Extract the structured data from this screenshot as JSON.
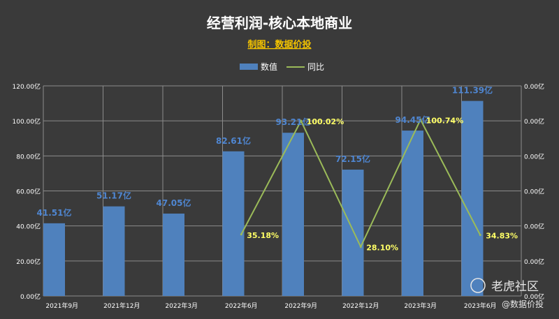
{
  "chart_data": {
    "type": "bar",
    "title": "经营利润-核心本地商业",
    "subtitle": "制图：数据价投",
    "categories": [
      "2021年9月",
      "2021年12月",
      "2022年3月",
      "2022年6月",
      "2022年9月",
      "2022年12月",
      "2023年3月",
      "2023年6月"
    ],
    "series": [
      {
        "name": "数值",
        "type": "bar",
        "axis": "left",
        "values": [
          41.51,
          51.17,
          47.05,
          82.61,
          93.21,
          72.15,
          94.45,
          111.39
        ],
        "labels": [
          "41.51亿",
          "51.17亿",
          "47.05亿",
          "82.61亿",
          "93.21亿",
          "72.15亿",
          "94.45亿",
          "111.39亿"
        ]
      },
      {
        "name": "同比",
        "type": "line",
        "axis": "right",
        "values": [
          null,
          null,
          null,
          35.18,
          100.02,
          28.1,
          100.74,
          34.83
        ],
        "labels": [
          "",
          "",
          "",
          "35.18%",
          "100.02%",
          "28.10%",
          "100.74%",
          "34.83%"
        ]
      }
    ],
    "y_left": {
      "ylim": [
        0,
        120
      ],
      "ticks": [
        0,
        20,
        40,
        60,
        80,
        100,
        120
      ],
      "tick_labels": [
        "0.00亿",
        "20.00亿",
        "40.00亿",
        "60.00亿",
        "80.00亿",
        "100.00亿",
        "120.00亿"
      ]
    },
    "y_right": {
      "ylim": [
        0,
        120
      ],
      "tick_labels": [
        "0.00亿",
        "0.00亿",
        "0.00亿",
        "0.00亿",
        "0.00亿",
        "0.00亿",
        "0.00亿"
      ]
    },
    "grid": true,
    "legend": "top-center",
    "colors": {
      "bar": "#4f81bd",
      "line": "#9bbb59",
      "background": "#3a3a3a",
      "grid": "#8c8c8c"
    }
  },
  "watermark": {
    "logo_text": "老虎社区",
    "handle": "@数据价投"
  }
}
